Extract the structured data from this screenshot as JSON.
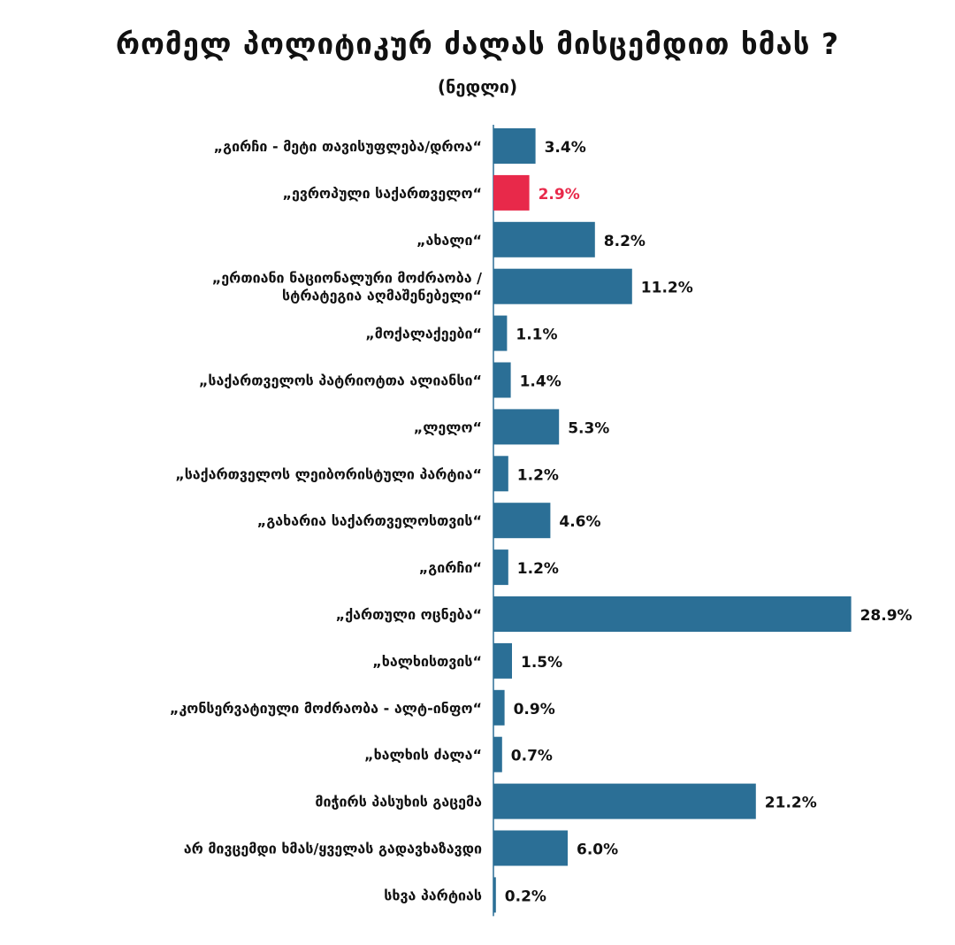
{
  "title": "რომელ პოლიტიკურ ძალას მისცემდით ხმას ?",
  "subtitle": "(ნედლი)",
  "colors": {
    "bar": "#2b6f96",
    "highlight_bar": "#e8294a",
    "axis": "#2b6f96",
    "label_text": "#111111",
    "value_text": "#111111",
    "highlight_text": "#e8294a"
  },
  "chart_data": {
    "type": "bar",
    "orientation": "horizontal",
    "title": "რომელ პოლიტიკურ ძალას მისცემდით ხმას ?",
    "subtitle": "(ნედლი)",
    "xlabel": "",
    "ylabel": "",
    "value_suffix": "%",
    "xlim": [
      0,
      30
    ],
    "grid": false,
    "legend": "none",
    "categories": [
      [
        "„გირჩი - მეტი თავისუფლება/დროა“"
      ],
      [
        "„ევროპული საქართველო“"
      ],
      [
        "„ახალი“"
      ],
      [
        "„ერთიანი ნაციონალური მოძრაობა /",
        "სტრატეგია აღმაშენებელი“"
      ],
      [
        "„მოქალაქეები“"
      ],
      [
        "„საქართველოს პატრიოტთა ალიანსი“"
      ],
      [
        "„ლელო“"
      ],
      [
        "„საქართველოს ლეიბორისტული პარტია“"
      ],
      [
        "„გახარია საქართველოსთვის“"
      ],
      [
        "„გირჩი“"
      ],
      [
        "„ქართული ოცნება“"
      ],
      [
        "„ხალხისთვის“"
      ],
      [
        "„კონსერვატიული მოძრაობა - ალტ-ინფო“"
      ],
      [
        "„ხალხის ძალა“"
      ],
      [
        "მიჭირს პასუხის გაცემა"
      ],
      [
        "არ მივცემდი ხმას/ყველას გადავხაზავდი"
      ],
      [
        "სხვა პარტიას"
      ]
    ],
    "values": [
      3.4,
      2.9,
      8.2,
      11.2,
      1.1,
      1.4,
      5.3,
      1.2,
      4.6,
      1.2,
      28.9,
      1.5,
      0.9,
      0.7,
      21.2,
      6.0,
      0.2
    ],
    "value_labels": [
      "3.4%",
      "2.9%",
      "8.2%",
      "11.2%",
      "1.1%",
      "1.4%",
      "5.3%",
      "1.2%",
      "4.6%",
      "1.2%",
      "28.9%",
      "1.5%",
      "0.9%",
      "0.7%",
      "21.2%",
      "6.0%",
      "0.2%"
    ],
    "highlight_index": 1
  }
}
